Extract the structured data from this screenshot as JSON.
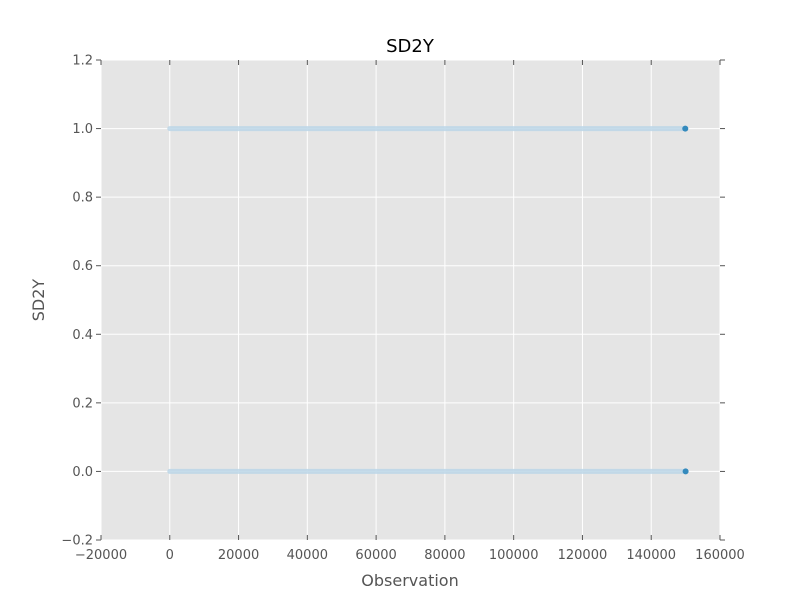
{
  "chart_data": {
    "type": "scatter",
    "title": "SD2Y",
    "xlabel": "Observation",
    "ylabel": "SD2Y",
    "xlim": [
      -20000,
      160000
    ],
    "ylim": [
      -0.2,
      1.2
    ],
    "xticks": [
      -20000,
      0,
      20000,
      40000,
      60000,
      80000,
      100000,
      120000,
      140000,
      160000
    ],
    "yticks": [
      -0.2,
      0.0,
      0.2,
      0.4,
      0.6,
      0.8,
      1.0,
      1.2
    ],
    "xtick_labels": [
      "−20000",
      "0",
      "20000",
      "40000",
      "60000",
      "80000",
      "100000",
      "120000",
      "140000",
      "160000"
    ],
    "ytick_labels": [
      "−0.2",
      "0.0",
      "0.2",
      "0.4",
      "0.6",
      "0.8",
      "1.0",
      "1.2"
    ],
    "grid": true,
    "series": [
      {
        "levels": [
          {
            "y": 1.0,
            "x_range": [
              0,
              149900
            ],
            "last_point": [
              149900,
              1.0
            ]
          },
          {
            "y": 0.0,
            "x_range": [
              0,
              150000
            ],
            "last_point": [
              150000,
              0.0
            ]
          }
        ]
      }
    ],
    "colors": {
      "background": "#e5e5e5",
      "grid": "#ffffff",
      "band": "#bcd6e8",
      "point": "#348abd"
    }
  }
}
